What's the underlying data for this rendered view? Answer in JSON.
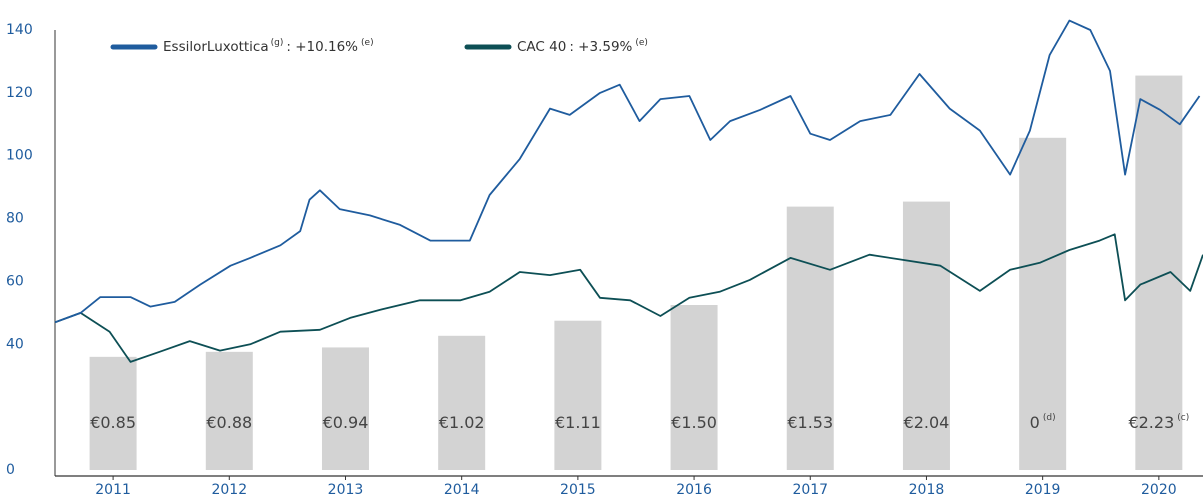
{
  "chart_data": {
    "type": "line",
    "xlim": [
      2010.5,
      2020.38
    ],
    "xticks": [
      2011,
      2012,
      2013,
      2014,
      2015,
      2016,
      2017,
      2018,
      2019,
      2020
    ],
    "ylim": [
      0,
      140
    ],
    "yticks": [
      0,
      40,
      60,
      80,
      100,
      120,
      140
    ],
    "series": [
      {
        "name": "EssilorLuxottica",
        "name_note": "(g)",
        "performance": ": +10.16%",
        "performance_note": "(e)",
        "color": "#1f5c9e",
        "x": [
          2010.5,
          2010.72,
          2010.89,
          2011.15,
          2011.32,
          2011.53,
          2011.75,
          2012.01,
          2012.18,
          2012.44,
          2012.61,
          2012.69,
          2012.78,
          2012.95,
          2013.21,
          2013.47,
          2013.73,
          2014.07,
          2014.24,
          2014.5,
          2014.76,
          2014.93,
          2015.19,
          2015.36,
          2015.53,
          2015.71,
          2015.96,
          2016.14,
          2016.31,
          2016.57,
          2016.83,
          2017.0,
          2017.17,
          2017.43,
          2017.69,
          2017.94,
          2018.2,
          2018.46,
          2018.72,
          2018.89,
          2019.06,
          2019.23,
          2019.41,
          2019.58,
          2019.71,
          2019.84,
          2020.01,
          2020.18,
          2020.35
        ],
        "values": [
          47,
          50,
          55,
          55,
          52,
          53.5,
          59,
          65,
          67.5,
          71.5,
          76,
          86,
          89,
          83,
          81,
          78,
          73,
          73,
          87.5,
          99,
          115,
          113,
          120,
          122.6,
          111,
          118,
          119,
          105,
          111,
          114.6,
          119,
          107,
          105,
          111,
          113,
          126,
          115,
          108,
          94,
          108,
          132,
          143,
          140,
          127,
          94,
          118,
          114.6,
          110,
          119
        ]
      },
      {
        "name": "CAC 40",
        "performance": ": +3.59%",
        "performance_note": "(e)",
        "color": "#0d4f55",
        "x": [
          2010.5,
          2010.72,
          2010.97,
          2011.15,
          2011.4,
          2011.66,
          2011.92,
          2012.18,
          2012.44,
          2012.78,
          2013.04,
          2013.3,
          2013.64,
          2013.99,
          2014.24,
          2014.5,
          2014.76,
          2015.02,
          2015.19,
          2015.45,
          2015.71,
          2015.96,
          2016.22,
          2016.48,
          2016.83,
          2017.17,
          2017.51,
          2017.77,
          2018.12,
          2018.46,
          2018.72,
          2018.98,
          2019.23,
          2019.49,
          2019.62,
          2019.71,
          2019.84,
          2020.1,
          2020.27,
          2020.38
        ],
        "values": [
          47,
          50,
          44,
          34.4,
          37.6,
          41,
          38,
          40,
          44,
          44.6,
          48.4,
          51,
          54,
          54,
          56.7,
          63,
          62,
          63.7,
          54.8,
          54,
          49,
          54.8,
          56.7,
          60.5,
          67.5,
          63.7,
          68.5,
          67,
          65,
          57,
          63.7,
          66,
          70,
          73,
          75,
          54,
          59,
          63,
          57,
          68.5
        ]
      }
    ],
    "bars": {
      "color": "#d3d3d3",
      "values": [
        36,
        37.6,
        39,
        42.7,
        47.5,
        52.5,
        83.8,
        85.4,
        105.7,
        125.5
      ],
      "labels": [
        "€0.85",
        "€0.88",
        "€0.94",
        "€1.02",
        "€1.11",
        "€1.50",
        "€1.53",
        "€2.04",
        "0",
        "€2.23"
      ],
      "label_notes": [
        null,
        null,
        null,
        null,
        null,
        null,
        null,
        null,
        "(d)",
        "(c)"
      ]
    }
  }
}
